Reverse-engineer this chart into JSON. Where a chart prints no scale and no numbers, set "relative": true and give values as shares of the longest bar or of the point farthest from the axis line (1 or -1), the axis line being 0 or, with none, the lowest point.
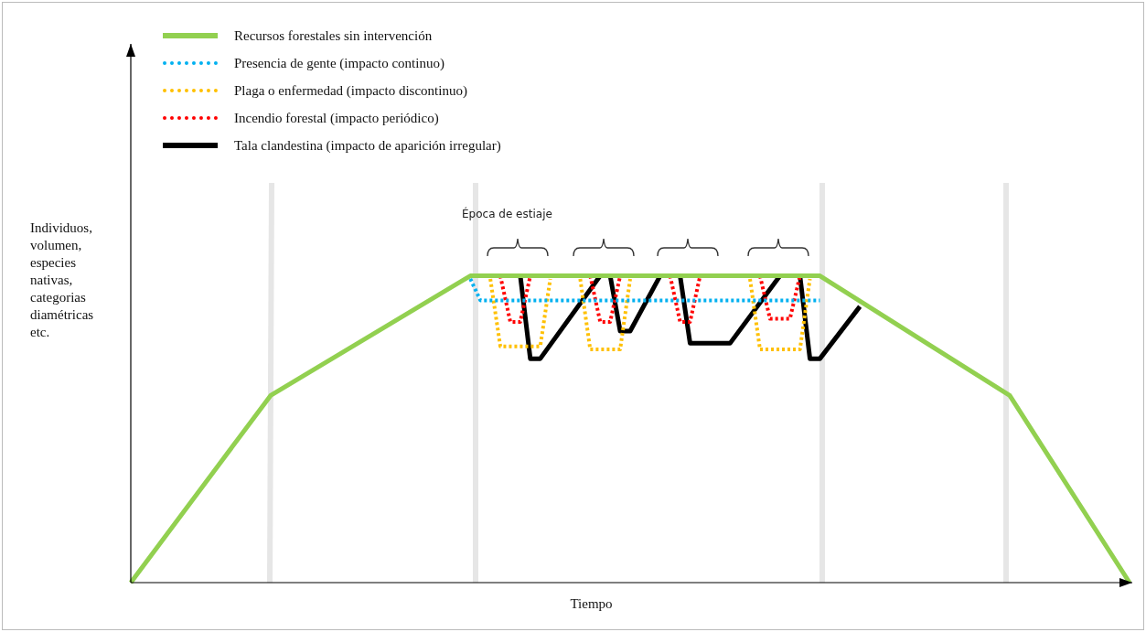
{
  "chart_data": {
    "type": "line",
    "relative": true,
    "xlabel": "Tiempo",
    "ylabel": "Individuos,\nvolumen,\nespecies\nnativas,\ncategorias\ndiamétricas\netc.",
    "tick_labels": false,
    "legend": "top left",
    "marker": "none",
    "annotations": [
      "Época de estiaje"
    ],
    "categories": [
      null,
      null,
      null,
      null,
      null,
      null,
      null,
      null,
      null,
      null,
      null,
      null,
      null,
      null,
      null,
      null,
      null,
      null,
      null,
      null,
      null,
      null,
      null,
      null,
      null,
      null,
      null,
      null,
      null,
      null,
      null,
      null,
      null,
      null,
      null,
      null,
      null,
      null,
      null,
      null,
      null,
      null,
      null,
      null,
      null,
      null,
      null,
      null,
      null,
      null,
      null,
      null,
      null,
      null,
      null,
      null,
      null,
      null,
      null,
      null,
      null,
      null,
      null,
      null,
      null,
      null,
      null,
      null,
      null,
      null,
      null,
      null,
      null,
      null,
      null,
      null,
      null,
      null,
      null,
      null,
      null,
      null,
      null,
      null,
      null,
      null,
      null,
      null,
      null,
      null,
      null,
      null,
      null,
      null,
      null,
      null,
      null,
      null,
      null,
      null,
      null
    ],
    "series": [
      {
        "name": "Recursos forestales sin intervención",
        "color": "#92d050",
        "line_style": "solid",
        "values": [
          0,
          null,
          null,
          null,
          null,
          null,
          null,
          null,
          null,
          null,
          null,
          null,
          null,
          null,
          0.61,
          null,
          null,
          null,
          null,
          null,
          null,
          null,
          null,
          null,
          null,
          null,
          null,
          null,
          null,
          null,
          null,
          null,
          null,
          null,
          1,
          null,
          null,
          null,
          null,
          null,
          null,
          null,
          null,
          null,
          null,
          null,
          null,
          null,
          null,
          null,
          null,
          null,
          null,
          null,
          null,
          null,
          null,
          null,
          null,
          null,
          null,
          null,
          null,
          null,
          null,
          null,
          null,
          null,
          null,
          1,
          null,
          null,
          null,
          null,
          null,
          null,
          null,
          null,
          null,
          null,
          null,
          null,
          null,
          null,
          null,
          null,
          null,
          null,
          0.61,
          null,
          null,
          null,
          null,
          null,
          null,
          null,
          null,
          null,
          null,
          null,
          0
        ]
      },
      {
        "name": "Presencia de gente (impacto  continuo)",
        "color": "#00b0f0",
        "line_style": "dotted",
        "values": [
          null,
          null,
          null,
          null,
          null,
          null,
          null,
          null,
          null,
          null,
          null,
          null,
          null,
          null,
          null,
          null,
          null,
          null,
          null,
          null,
          null,
          null,
          null,
          null,
          null,
          null,
          null,
          null,
          null,
          null,
          null,
          null,
          null,
          null,
          0.99,
          0.92,
          null,
          null,
          null,
          null,
          null,
          null,
          null,
          null,
          null,
          null,
          null,
          null,
          null,
          null,
          null,
          null,
          null,
          null,
          null,
          null,
          null,
          null,
          null,
          null,
          null,
          null,
          null,
          null,
          null,
          null,
          null,
          null,
          null,
          0.92,
          null,
          null,
          null,
          null,
          null,
          null,
          null,
          null,
          null,
          null,
          null,
          null,
          null,
          null,
          null,
          null,
          null,
          null,
          null,
          null,
          null,
          null,
          null,
          null,
          null,
          null,
          null,
          null,
          null,
          null,
          null
        ]
      },
      {
        "name": "Plaga o enfermedad  (impacto  discontinuo)",
        "color": "#ffc000",
        "line_style": "dotted",
        "values": [
          null,
          null,
          null,
          null,
          null,
          null,
          null,
          null,
          null,
          null,
          null,
          null,
          null,
          null,
          null,
          null,
          null,
          null,
          null,
          null,
          null,
          null,
          null,
          null,
          null,
          null,
          null,
          null,
          null,
          null,
          null,
          null,
          null,
          null,
          null,
          null,
          0.99,
          0.77,
          null,
          null,
          null,
          0.77,
          0.99,
          null,
          null,
          null,
          null,
          null,
          null,
          null,
          null,
          null,
          null,
          null,
          null,
          null,
          null,
          null,
          null,
          null,
          null,
          null,
          null,
          null,
          null,
          null,
          null,
          null,
          null,
          null,
          null,
          null,
          null,
          null,
          null,
          null,
          null,
          null,
          null,
          null,
          null,
          null,
          null,
          null,
          null,
          null,
          null,
          null,
          null,
          null,
          null,
          null,
          null,
          null,
          null,
          null,
          null,
          null,
          null,
          null,
          null
        ]
      },
      {
        "color": "#ffc000",
        "line_style": "dotted",
        "values": [
          null,
          null,
          null,
          null,
          null,
          null,
          null,
          null,
          null,
          null,
          null,
          null,
          null,
          null,
          null,
          null,
          null,
          null,
          null,
          null,
          null,
          null,
          null,
          null,
          null,
          null,
          null,
          null,
          null,
          null,
          null,
          null,
          null,
          null,
          null,
          null,
          null,
          null,
          null,
          null,
          null,
          null,
          null,
          null,
          null,
          0.99,
          0.76,
          null,
          null,
          0.76,
          0.99,
          null,
          null,
          null,
          null,
          null,
          null,
          null,
          null,
          null,
          null,
          null,
          null,
          null,
          null,
          null,
          null,
          null,
          null,
          null,
          null,
          null,
          null,
          null,
          null,
          null,
          null,
          null,
          null,
          null,
          null,
          null,
          null,
          null,
          null,
          null,
          null,
          null,
          null,
          null,
          null,
          null,
          null,
          null,
          null,
          null,
          null,
          null,
          null,
          null,
          null
        ]
      },
      {
        "color": "#ffc000",
        "line_style": "dotted",
        "values": [
          null,
          null,
          null,
          null,
          null,
          null,
          null,
          null,
          null,
          null,
          null,
          null,
          null,
          null,
          null,
          null,
          null,
          null,
          null,
          null,
          null,
          null,
          null,
          null,
          null,
          null,
          null,
          null,
          null,
          null,
          null,
          null,
          null,
          null,
          null,
          null,
          null,
          null,
          null,
          null,
          null,
          null,
          null,
          null,
          null,
          null,
          null,
          null,
          null,
          null,
          null,
          null,
          null,
          null,
          null,
          null,
          null,
          null,
          null,
          null,
          null,
          null,
          0.99,
          0.76,
          null,
          null,
          null,
          0.76,
          0.99,
          null,
          null,
          null,
          null,
          null,
          null,
          null,
          null,
          null,
          null,
          null,
          null,
          null,
          null,
          null,
          null,
          null,
          null,
          null,
          null,
          null,
          null,
          null,
          null,
          null,
          null,
          null,
          null,
          null,
          null,
          null,
          null
        ]
      },
      {
        "name": "Incendio  forestal (impacto  periódico)",
        "color": "#ff0000",
        "line_style": "dotted",
        "values": [
          null,
          null,
          null,
          null,
          null,
          null,
          null,
          null,
          null,
          null,
          null,
          null,
          null,
          null,
          null,
          null,
          null,
          null,
          null,
          null,
          null,
          null,
          null,
          null,
          null,
          null,
          null,
          null,
          null,
          null,
          null,
          null,
          null,
          null,
          null,
          null,
          null,
          1,
          0.85,
          0.85,
          1,
          null,
          null,
          null,
          null,
          null,
          null,
          null,
          null,
          null,
          null,
          null,
          null,
          null,
          null,
          null,
          null,
          null,
          null,
          null,
          null,
          null,
          null,
          null,
          null,
          null,
          null,
          null,
          null,
          null,
          null,
          null,
          null,
          null,
          null,
          null,
          null,
          null,
          null,
          null,
          null,
          null,
          null,
          null,
          null,
          null,
          null,
          null,
          null,
          null,
          null,
          null,
          null,
          null,
          null,
          null,
          null,
          null,
          null,
          null,
          null
        ]
      },
      {
        "color": "#ff0000",
        "line_style": "dotted",
        "values": [
          null,
          null,
          null,
          null,
          null,
          null,
          null,
          null,
          null,
          null,
          null,
          null,
          null,
          null,
          null,
          null,
          null,
          null,
          null,
          null,
          null,
          null,
          null,
          null,
          null,
          null,
          null,
          null,
          null,
          null,
          null,
          null,
          null,
          null,
          null,
          null,
          null,
          null,
          null,
          null,
          null,
          null,
          null,
          null,
          null,
          null,
          1,
          0.85,
          0.85,
          1,
          null,
          null,
          null,
          null,
          null,
          null,
          null,
          null,
          null,
          null,
          null,
          null,
          null,
          null,
          null,
          null,
          null,
          null,
          null,
          null,
          null,
          null,
          null,
          null,
          null,
          null,
          null,
          null,
          null,
          null,
          null,
          null,
          null,
          null,
          null,
          null,
          null,
          null,
          null,
          null,
          null,
          null,
          null,
          null,
          null,
          null,
          null,
          null,
          null,
          null,
          null
        ]
      },
      {
        "color": "#ff0000",
        "line_style": "dotted",
        "values": [
          null,
          null,
          null,
          null,
          null,
          null,
          null,
          null,
          null,
          null,
          null,
          null,
          null,
          null,
          null,
          null,
          null,
          null,
          null,
          null,
          null,
          null,
          null,
          null,
          null,
          null,
          null,
          null,
          null,
          null,
          null,
          null,
          null,
          null,
          null,
          null,
          null,
          null,
          null,
          null,
          null,
          null,
          null,
          null,
          null,
          null,
          null,
          null,
          null,
          null,
          null,
          null,
          null,
          null,
          1,
          0.85,
          0.85,
          1,
          null,
          null,
          null,
          null,
          null,
          null,
          null,
          null,
          null,
          null,
          null,
          null,
          null,
          null,
          null,
          null,
          null,
          null,
          null,
          null,
          null,
          null,
          null,
          null,
          null,
          null,
          null,
          null,
          null,
          null,
          null,
          null,
          null,
          null,
          null,
          null,
          null,
          null,
          null,
          null,
          null,
          null,
          null
        ]
      },
      {
        "color": "#ff0000",
        "line_style": "dotted",
        "values": [
          null,
          null,
          null,
          null,
          null,
          null,
          null,
          null,
          null,
          null,
          null,
          null,
          null,
          null,
          null,
          null,
          null,
          null,
          null,
          null,
          null,
          null,
          null,
          null,
          null,
          null,
          null,
          null,
          null,
          null,
          null,
          null,
          null,
          null,
          null,
          null,
          null,
          null,
          null,
          null,
          null,
          null,
          null,
          null,
          null,
          null,
          null,
          null,
          null,
          null,
          null,
          null,
          null,
          null,
          null,
          null,
          null,
          null,
          null,
          null,
          null,
          null,
          null,
          1,
          0.86,
          null,
          0.86,
          1,
          null,
          null,
          null,
          null,
          null,
          null,
          null,
          null,
          null,
          null,
          null,
          null,
          null,
          null,
          null,
          null,
          null,
          null,
          null,
          null,
          null,
          null,
          null,
          null,
          null,
          null,
          null,
          null,
          null,
          null,
          null,
          null,
          null
        ]
      },
      {
        "name": "Tala clandestina (impacto  de aparición  irregular)",
        "color": "#000000",
        "line_style": "solid",
        "values": [
          null,
          null,
          null,
          null,
          null,
          null,
          null,
          null,
          null,
          null,
          null,
          null,
          null,
          null,
          null,
          null,
          null,
          null,
          null,
          null,
          null,
          null,
          null,
          null,
          null,
          null,
          null,
          null,
          null,
          null,
          null,
          null,
          null,
          null,
          null,
          null,
          null,
          null,
          null,
          1,
          0.73,
          0.73,
          null,
          null,
          null,
          null,
          null,
          1,
          null,
          null,
          null,
          null,
          null,
          null,
          null,
          null,
          null,
          null,
          null,
          null,
          null,
          null,
          null,
          null,
          null,
          null,
          null,
          null,
          null,
          null,
          null,
          null,
          null,
          null,
          null,
          null,
          null,
          null,
          null,
          null,
          null,
          null,
          null,
          null,
          null,
          null,
          null,
          null,
          null,
          null,
          null,
          null,
          null,
          null,
          null,
          null,
          null,
          null,
          null,
          null,
          null
        ]
      },
      {
        "color": "#000000",
        "line_style": "solid",
        "values": [
          null,
          null,
          null,
          null,
          null,
          null,
          null,
          null,
          null,
          null,
          null,
          null,
          null,
          null,
          null,
          null,
          null,
          null,
          null,
          null,
          null,
          null,
          null,
          null,
          null,
          null,
          null,
          null,
          null,
          null,
          null,
          null,
          null,
          null,
          null,
          null,
          null,
          null,
          null,
          null,
          null,
          null,
          null,
          null,
          null,
          null,
          null,
          null,
          1,
          0.82,
          0.82,
          null,
          null,
          1,
          null,
          null,
          null,
          null,
          null,
          null,
          null,
          null,
          null,
          null,
          null,
          null,
          null,
          null,
          null,
          null,
          null,
          null,
          null,
          null,
          null,
          null,
          null,
          null,
          null,
          null,
          null,
          null,
          null,
          null,
          null,
          null,
          null,
          null,
          null,
          null,
          null,
          null,
          null,
          null,
          null,
          null,
          null,
          null,
          null,
          null,
          null
        ]
      },
      {
        "color": "#000000",
        "line_style": "solid",
        "values": [
          null,
          null,
          null,
          null,
          null,
          null,
          null,
          null,
          null,
          null,
          null,
          null,
          null,
          null,
          null,
          null,
          null,
          null,
          null,
          null,
          null,
          null,
          null,
          null,
          null,
          null,
          null,
          null,
          null,
          null,
          null,
          null,
          null,
          null,
          null,
          null,
          null,
          null,
          null,
          null,
          null,
          null,
          null,
          null,
          null,
          null,
          null,
          null,
          null,
          null,
          null,
          null,
          null,
          null,
          null,
          1,
          0.78,
          null,
          null,
          null,
          0.78,
          null,
          null,
          null,
          null,
          1,
          null,
          null,
          null,
          null,
          null,
          null,
          null,
          null,
          null,
          null,
          null,
          null,
          null,
          null,
          null,
          null,
          null,
          null,
          null,
          null,
          null,
          null,
          null,
          null,
          null,
          null,
          null,
          null,
          null,
          null,
          null,
          null,
          null,
          null,
          null
        ]
      },
      {
        "color": "#000000",
        "line_style": "solid",
        "values": [
          null,
          null,
          null,
          null,
          null,
          null,
          null,
          null,
          null,
          null,
          null,
          null,
          null,
          null,
          null,
          null,
          null,
          null,
          null,
          null,
          null,
          null,
          null,
          null,
          null,
          null,
          null,
          null,
          null,
          null,
          null,
          null,
          null,
          null,
          null,
          null,
          null,
          null,
          null,
          null,
          null,
          null,
          null,
          null,
          null,
          null,
          null,
          null,
          null,
          null,
          null,
          null,
          null,
          null,
          null,
          null,
          null,
          null,
          null,
          null,
          null,
          null,
          null,
          null,
          null,
          null,
          null,
          1,
          0.73,
          0.73,
          null,
          null,
          null,
          0.9,
          null,
          null,
          null,
          null,
          null,
          null,
          null,
          null,
          null,
          null,
          null,
          null,
          null,
          null,
          null,
          null,
          null,
          null,
          null,
          null,
          null,
          null,
          null,
          null,
          null,
          null,
          null
        ]
      }
    ]
  }
}
